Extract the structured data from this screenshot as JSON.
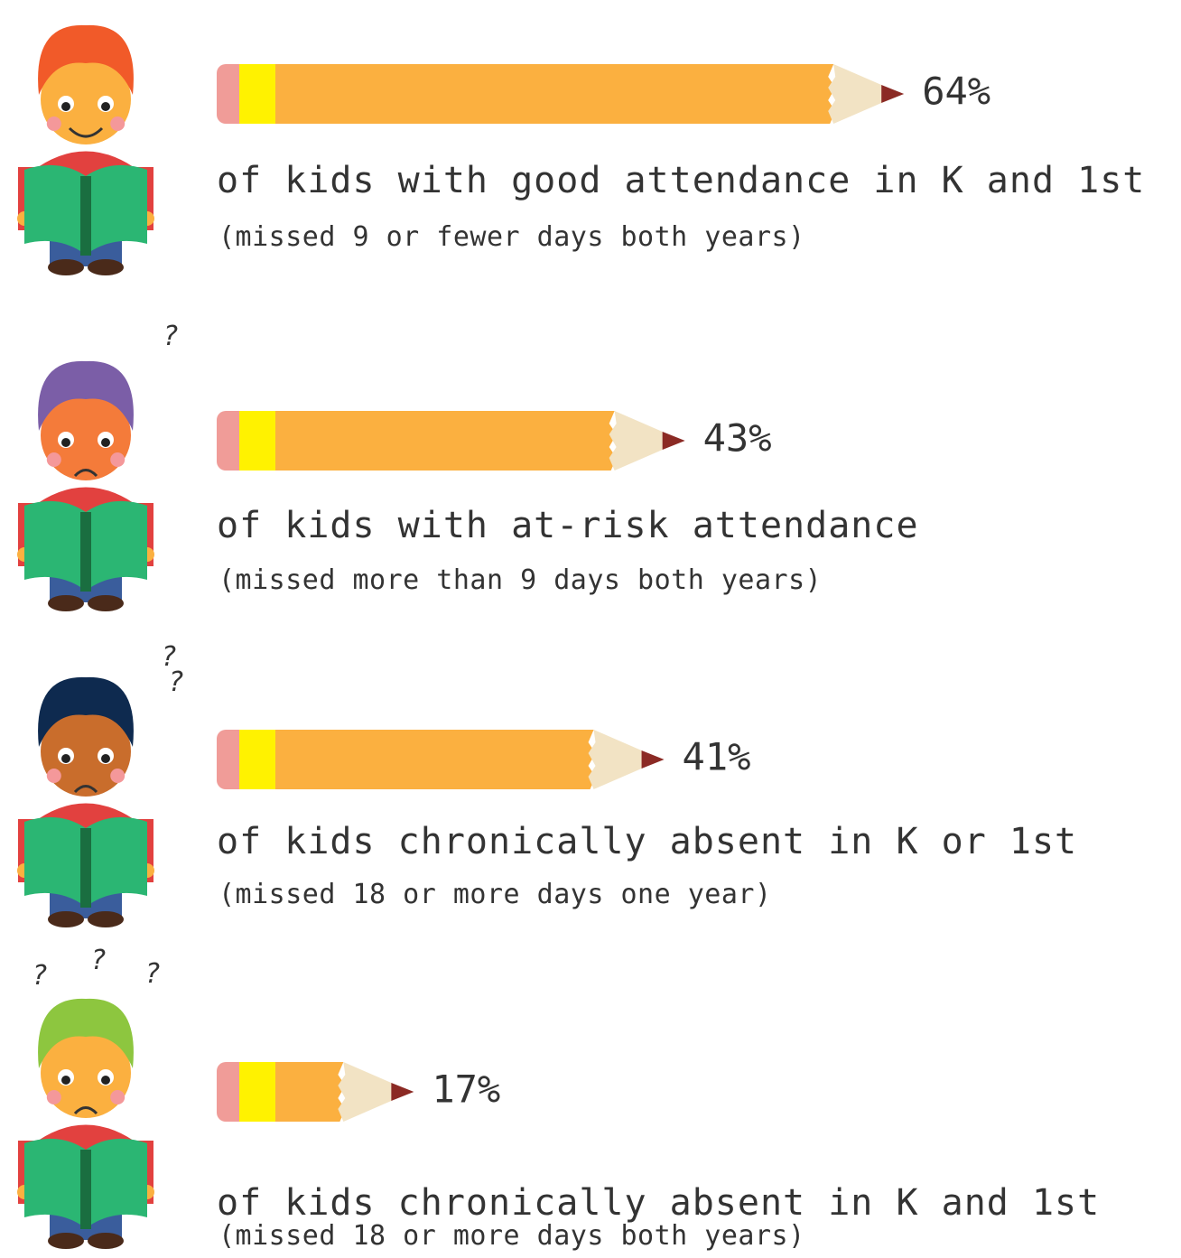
{
  "chart_data": {
    "type": "pencil-bar",
    "categories": [
      "of kids with good attendance in K and 1st",
      "of kids with at-risk attendance",
      "of kids chronically absent in K or 1st",
      "of kids chronically absent in K and 1st"
    ],
    "subtitles": [
      "(missed 9 or fewer days both years)",
      "(missed more than 9 days both years)",
      "(missed 18 or more days one year)",
      "(missed 18 or more days both years)"
    ],
    "values": [
      64,
      43,
      41,
      17
    ],
    "value_labels": [
      "64%",
      "43%",
      "41%",
      "17%"
    ],
    "question_marks": [
      [],
      [
        "?"
      ],
      [
        "?",
        "?"
      ],
      [
        "?",
        "?",
        "?"
      ]
    ],
    "colors": {
      "eraser": "#f09c98",
      "ferrule": "#fff200",
      "body": "#fbb040",
      "wood": "#f2e3c4",
      "lead": "#8b2a24"
    }
  }
}
